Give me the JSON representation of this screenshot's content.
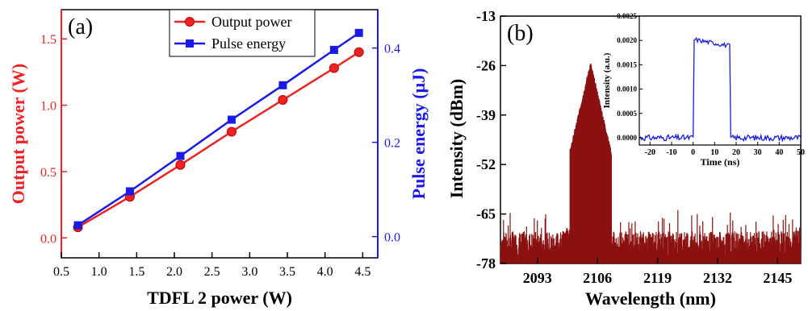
{
  "chart_data": [
    {
      "type": "line",
      "panel_label": "(a)",
      "xlabel": "TDFL 2 power (W)",
      "ylabel": "Output power (W)",
      "y2label": "Pulse energy (μJ)",
      "xlim": [
        0.5,
        4.7
      ],
      "ylim": [
        -0.15,
        1.72
      ],
      "y2lim": [
        -0.045,
        0.4813
      ],
      "xticks": [
        "0.5",
        "1.0",
        "1.5",
        "2.0",
        "2.5",
        "3.0",
        "3.5",
        "4.0",
        "4.5"
      ],
      "yticks": [
        "0.0",
        "0.5",
        "1.0",
        "1.5"
      ],
      "y2ticks": [
        "0.0",
        "0.2",
        "0.4"
      ],
      "legend": "top-center",
      "x": [
        0.72,
        1.41,
        2.08,
        2.76,
        3.44,
        4.12,
        4.45
      ],
      "series": [
        {
          "name": "Output power",
          "axis": "left",
          "color": "#ee2222",
          "marker": "circle",
          "values": [
            0.08,
            0.31,
            0.55,
            0.8,
            1.04,
            1.28,
            1.4
          ]
        },
        {
          "name": "Pulse energy",
          "axis": "right",
          "color": "#1a1ae6",
          "marker": "square",
          "values": [
            0.024,
            0.096,
            0.171,
            0.248,
            0.321,
            0.396,
            0.432
          ]
        }
      ]
    },
    {
      "type": "line",
      "panel_label": "(b)",
      "xlabel": "Wavelength (nm)",
      "ylabel": "Intensity (dBm)",
      "xlim": [
        2085,
        2150
      ],
      "ylim": [
        -78,
        -13
      ],
      "xticks": [
        "2093",
        "2106",
        "2119",
        "2132",
        "2145"
      ],
      "yticks": [
        "-78",
        "-65",
        "-52",
        "-39",
        "-26",
        "-13"
      ],
      "color": "#8b1010",
      "noise_floor": -73,
      "peak": {
        "x": 2104.5,
        "y": -25.5
      },
      "inset": {
        "xlabel": "Time (ns)",
        "ylabel": "Intensity (a.u.)",
        "xlim": [
          -25,
          50
        ],
        "ylim": [
          -0.00015,
          0.0025
        ],
        "xticks": [
          "-20",
          "-10",
          "0",
          "10",
          "20",
          "30",
          "40",
          "50"
        ],
        "yticks": [
          "0.0000",
          "0.0005",
          "0.0010",
          "0.0015",
          "0.0020",
          "0.0025"
        ],
        "color": "#1a1ae6",
        "pulse": {
          "start": 0.5,
          "end": 17,
          "level": 0.00195
        }
      }
    }
  ]
}
